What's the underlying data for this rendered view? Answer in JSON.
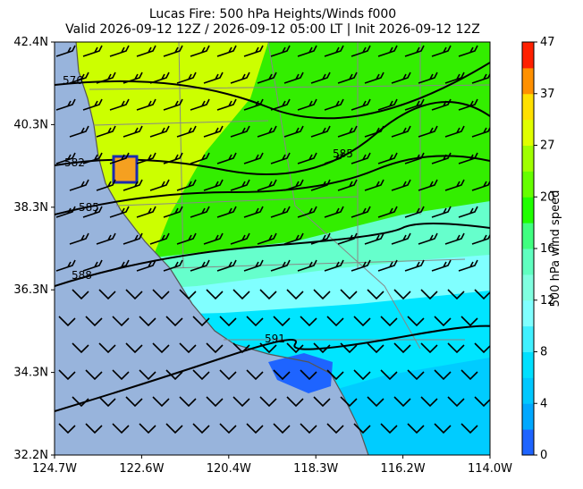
{
  "title": {
    "line1": "Lucas Fire: 500 hPa Heights/Winds f000",
    "line2": "Valid 2026-09-12 12Z / 2026-09-12 05:00 LT | Init 2026-09-12 12Z"
  },
  "lat_labels": [
    "42.4N",
    "40.3N",
    "38.3N",
    "36.3N",
    "34.3N",
    "32.2N"
  ],
  "lon_labels": [
    "124.7W",
    "122.6W",
    "120.4W",
    "118.3W",
    "116.2W",
    "114.0W"
  ],
  "contour_labels": [
    "576",
    "582",
    "585",
    "588",
    "585",
    "591"
  ],
  "colorbar": {
    "label": "500 hPa wind speed",
    "ticks": [
      "0",
      "4",
      "8",
      "12",
      "16",
      "20",
      "27",
      "37",
      "47"
    ]
  }
}
